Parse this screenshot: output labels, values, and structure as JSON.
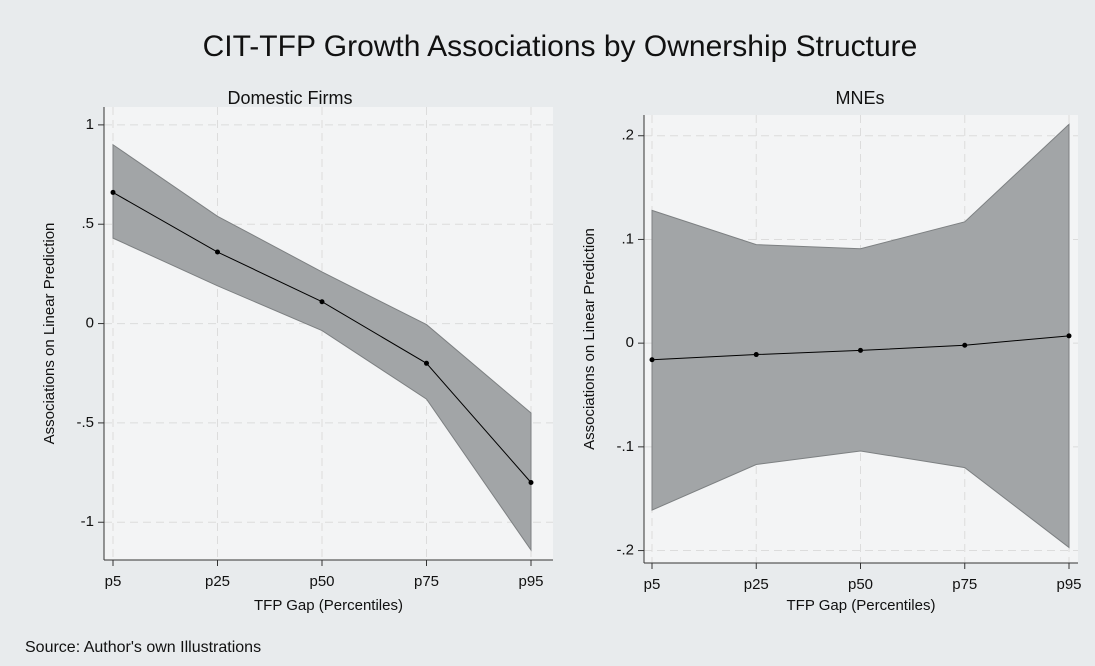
{
  "title": "CIT-TFP Growth Associations by Ownership Structure",
  "note": "Source: Author's own Illustrations",
  "chart_data": [
    {
      "type": "line",
      "title": "Domestic Firms",
      "xlabel": "TFP Gap (Percentiles)",
      "ylabel": "Associations on Linear Prediction",
      "categories": [
        "p5",
        "p25",
        "p50",
        "p75",
        "p95"
      ],
      "values": [
        0.66,
        0.36,
        0.11,
        -0.2,
        -0.8
      ],
      "ci_upper": [
        0.9,
        0.54,
        0.26,
        -0.005,
        -0.45
      ],
      "ci_lower": [
        0.43,
        0.19,
        -0.035,
        -0.38,
        -1.14
      ],
      "color": "#000000",
      "band_color": "#a2a5a7",
      "ylim": [
        -1.19,
        1.09
      ],
      "yticks": [
        -1,
        {
          "value": -0.5,
          "label": "-.5"
        },
        0,
        {
          "value": 0.5,
          "label": ".5"
        },
        1
      ],
      "grid": true
    },
    {
      "type": "line",
      "title": "MNEs",
      "xlabel": "TFP Gap (Percentiles)",
      "ylabel": "Associations on Linear Prediction",
      "categories": [
        "p5",
        "p25",
        "p50",
        "p75",
        "p95"
      ],
      "values": [
        -0.016,
        -0.011,
        -0.007,
        -0.002,
        0.007
      ],
      "ci_upper": [
        0.128,
        0.095,
        0.091,
        0.117,
        0.211
      ],
      "ci_lower": [
        -0.161,
        -0.117,
        -0.104,
        -0.12,
        -0.197
      ],
      "color": "#000000",
      "band_color": "#a2a5a7",
      "ylim": [
        -0.212,
        0.22
      ],
      "yticks": [
        {
          "value": -0.2,
          "label": "-.2"
        },
        {
          "value": -0.1,
          "label": "-.1"
        },
        0,
        {
          "value": 0.1,
          "label": ".1"
        },
        {
          "value": 0.2,
          "label": ".2"
        }
      ],
      "grid": true
    }
  ]
}
